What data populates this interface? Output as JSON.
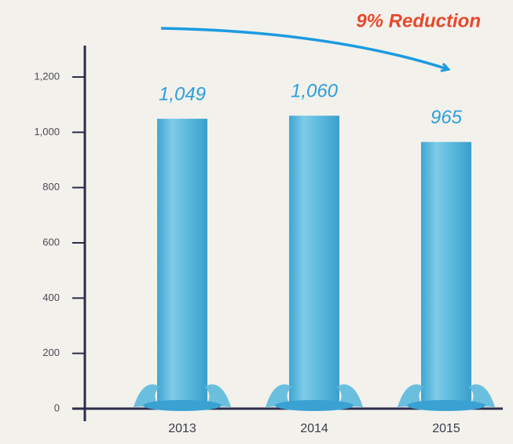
{
  "chart_data": {
    "type": "bar",
    "annotation": "9% Reduction",
    "categories": [
      "2013",
      "2014",
      "2015"
    ],
    "values": [
      1049,
      1060,
      965
    ],
    "value_labels": [
      "1,049",
      "1,060",
      "965"
    ],
    "color": "#5cb9dd",
    "ylim": [
      0,
      1200
    ],
    "yticks": [
      0,
      200,
      400,
      600,
      800,
      {
        "value": 1000,
        "label": "1,000"
      },
      {
        "value": 1200,
        "label": "1,200"
      }
    ]
  }
}
